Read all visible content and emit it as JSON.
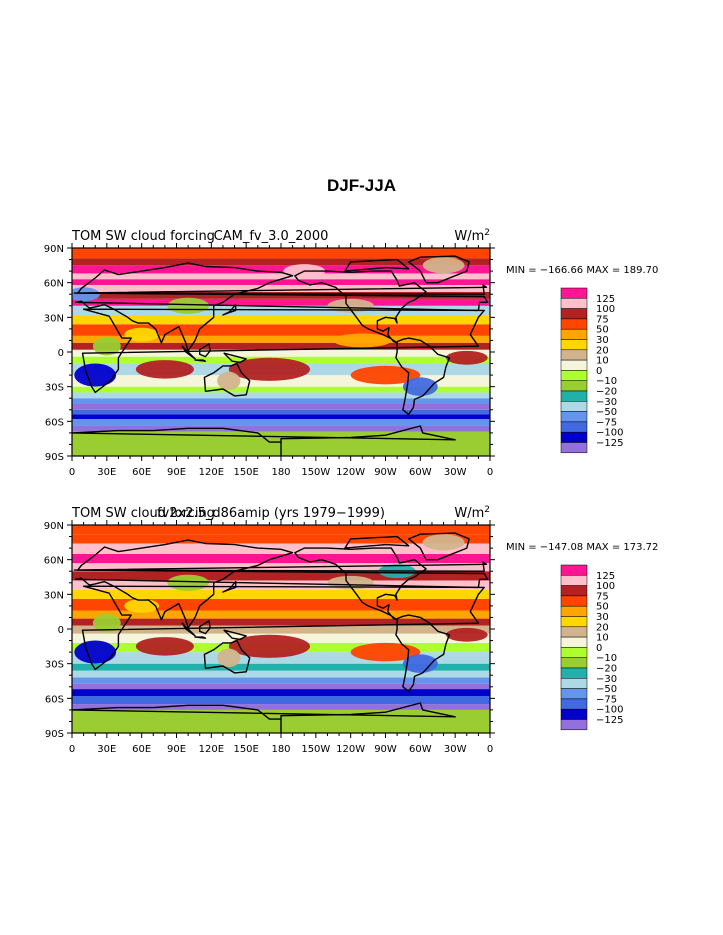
{
  "page": {
    "title": "DJF-JJA"
  },
  "colors": {
    "palette": [
      "#9370DB",
      "#0000CD",
      "#4169E1",
      "#6495ED",
      "#ADD8E6",
      "#20B2AA",
      "#9ACD32",
      "#ADFF2F",
      "#F5F5DC",
      "#D2B48C",
      "#FFD700",
      "#FFA500",
      "#FF4500",
      "#B22222",
      "#FFC0CB",
      "#FF1493"
    ],
    "ocean_fill": "#FF4500"
  },
  "chart_data": [
    {
      "type": "map-contour",
      "title_left": "TOM SW cloud forcing",
      "title_center": "CAM_fv_3.0_2000",
      "units": "W/m",
      "units_sup": "2",
      "stats": "MIN = −166.66 MAX = 189.70",
      "xlim": [
        0,
        360
      ],
      "ylim": [
        -90,
        90
      ],
      "x_tick_labels": [
        "0",
        "30E",
        "60E",
        "90E",
        "120E",
        "150E",
        "180",
        "150W",
        "120W",
        "90W",
        "60W",
        "30W",
        "0"
      ],
      "y_tick_labels": [
        "90N",
        "60N",
        "30N",
        "0",
        "30S",
        "60S",
        "90S"
      ],
      "legend_labels": [
        "125",
        "100",
        "75",
        "50",
        "30",
        "20",
        "10",
        "0",
        "−10",
        "−20",
        "−30",
        "−50",
        "−75",
        "−100",
        "−125"
      ]
    },
    {
      "type": "map-contour",
      "title_left": "TOM SW cloud forcing",
      "title_center": "fv2x2.5_d86amip (yrs 1979−1999)",
      "units": "W/m",
      "units_sup": "2",
      "stats": "MIN = −147.08 MAX = 173.72",
      "xlim": [
        0,
        360
      ],
      "ylim": [
        -90,
        90
      ],
      "x_tick_labels": [
        "0",
        "30E",
        "60E",
        "90E",
        "120E",
        "150E",
        "180",
        "150W",
        "120W",
        "90W",
        "60W",
        "30W",
        "0"
      ],
      "y_tick_labels": [
        "90N",
        "60N",
        "30N",
        "0",
        "30S",
        "60S",
        "90S"
      ],
      "legend_labels": [
        "125",
        "100",
        "75",
        "50",
        "30",
        "20",
        "10",
        "0",
        "−10",
        "−20",
        "−30",
        "−50",
        "−75",
        "−100",
        "−125"
      ]
    }
  ]
}
